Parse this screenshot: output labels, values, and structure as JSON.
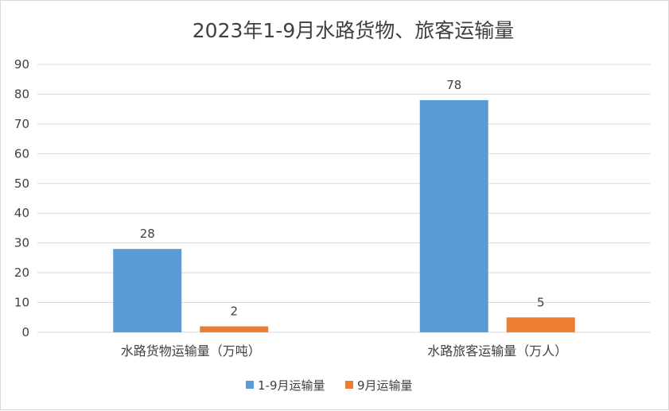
{
  "chart_data": {
    "type": "bar",
    "title": "2023年1-9月水路货物、旅客运输量",
    "xlabel": "",
    "ylabel": "",
    "categories": [
      "水路货物运输量（万吨）",
      "水路旅客运输量（万人）"
    ],
    "series": [
      {
        "name": "1-9月运输量",
        "values": [
          28,
          78
        ],
        "color": "#5b9bd5"
      },
      {
        "name": "9月运输量",
        "values": [
          2,
          5
        ],
        "color": "#ed7d31"
      }
    ],
    "ylim": [
      0,
      90
    ],
    "yticks": [
      0,
      10,
      20,
      30,
      40,
      50,
      60,
      70,
      80,
      90
    ],
    "grid": true,
    "legend": "bottom",
    "data_labels": true
  }
}
